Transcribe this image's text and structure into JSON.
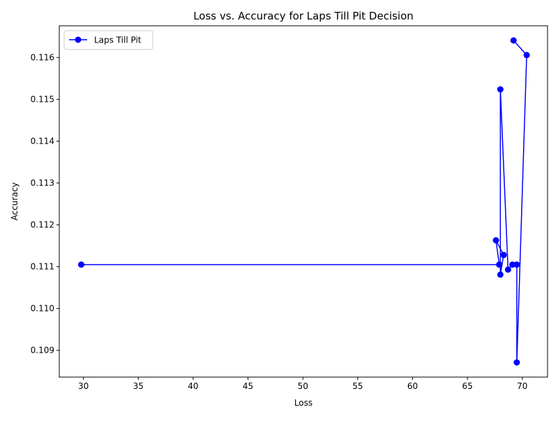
{
  "chart_data": {
    "type": "line",
    "title": "Loss vs. Accuracy for Laps Till Pit Decision",
    "xlabel": "Loss",
    "ylabel": "Accuracy",
    "xlim": [
      27.8,
      72.3
    ],
    "ylim": [
      0.10836,
      0.11676
    ],
    "xticks": [
      30,
      35,
      40,
      45,
      50,
      55,
      60,
      65,
      70
    ],
    "yticks": [
      0.109,
      0.11,
      0.111,
      0.112,
      0.113,
      0.114,
      0.115,
      0.116
    ],
    "xtick_labels": [
      "30",
      "35",
      "40",
      "45",
      "50",
      "55",
      "60",
      "65",
      "70"
    ],
    "ytick_labels": [
      "0.109",
      "0.110",
      "0.111",
      "0.112",
      "0.113",
      "0.114",
      "0.115",
      "0.116"
    ],
    "grid": false,
    "legend_position": "top-left",
    "series": [
      {
        "name": "Laps Till Pit",
        "color": "#0000ff",
        "marker": "circle",
        "points": [
          {
            "x": 29.8,
            "y": 0.11105
          },
          {
            "x": 67.9,
            "y": 0.11105
          },
          {
            "x": 67.6,
            "y": 0.11163
          },
          {
            "x": 68.3,
            "y": 0.11128
          },
          {
            "x": 68.0,
            "y": 0.11081
          },
          {
            "x": 68.0,
            "y": 0.11524
          },
          {
            "x": 68.7,
            "y": 0.11093
          },
          {
            "x": 69.1,
            "y": 0.11105
          },
          {
            "x": 69.5,
            "y": 0.11105
          },
          {
            "x": 69.5,
            "y": 0.10871
          },
          {
            "x": 70.4,
            "y": 0.11606
          },
          {
            "x": 69.2,
            "y": 0.11641
          }
        ]
      }
    ]
  }
}
